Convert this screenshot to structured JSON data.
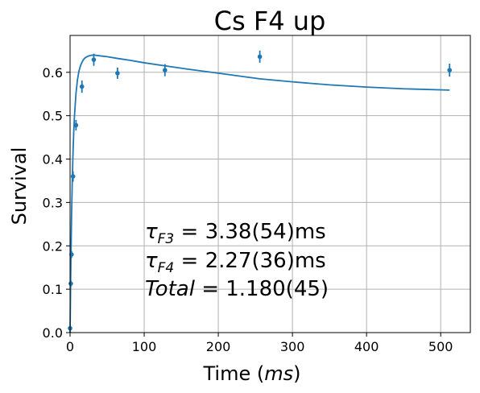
{
  "chart_data": {
    "type": "scatter",
    "title": "Cs F4 up",
    "xlabel": "Time (ms)",
    "xlabel_parts": {
      "text": "Time (",
      "math": "ms",
      "close": ")"
    },
    "ylabel": "Survival",
    "xlim": [
      0,
      540
    ],
    "ylim": [
      0,
      0.685
    ],
    "xticks": [
      0,
      100,
      200,
      300,
      400,
      500
    ],
    "yticks": [
      0.0,
      0.1,
      0.2,
      0.3,
      0.4,
      0.5,
      0.6
    ],
    "xtick_labels": [
      "0",
      "100",
      "200",
      "300",
      "400",
      "500"
    ],
    "ytick_labels": [
      "0.0",
      "0.1",
      "0.2",
      "0.3",
      "0.4",
      "0.5",
      "0.6"
    ],
    "grid": true,
    "color": "#1f77b4",
    "series": [
      {
        "kind": "errorbar",
        "x": [
          0,
          1,
          2,
          4,
          8,
          16,
          32,
          64,
          128,
          256,
          512
        ],
        "y": [
          0.01,
          0.113,
          0.18,
          0.36,
          0.478,
          0.567,
          0.629,
          0.598,
          0.605,
          0.636,
          0.605
        ],
        "yerr": [
          0.004,
          0.007,
          0.008,
          0.012,
          0.012,
          0.014,
          0.014,
          0.013,
          0.014,
          0.014,
          0.015
        ]
      },
      {
        "kind": "fit-curve",
        "x": [
          0,
          1,
          2,
          3,
          4,
          5,
          6,
          8,
          10,
          12,
          14,
          16,
          18,
          20,
          24,
          28,
          32,
          40,
          50,
          64,
          80,
          100,
          128,
          160,
          200,
          256,
          300,
          350,
          400,
          450,
          512
        ],
        "y": [
          0.0,
          0.152,
          0.266,
          0.352,
          0.416,
          0.464,
          0.501,
          0.552,
          0.583,
          0.603,
          0.615,
          0.623,
          0.629,
          0.633,
          0.637,
          0.639,
          0.64,
          0.638,
          0.636,
          0.632,
          0.628,
          0.622,
          0.615,
          0.607,
          0.598,
          0.585,
          0.578,
          0.571,
          0.566,
          0.562,
          0.559
        ]
      }
    ],
    "annotations": [
      {
        "lines": [
          "τ_F3 = 3.38(54)ms",
          "τ_F4 = 2.27(36)ms",
          "Total = 1.180(45)"
        ]
      }
    ]
  },
  "annotation_text": {
    "line1": {
      "tau": "τ",
      "sub": "F3",
      "rest": " = 3.38(54)ms"
    },
    "line2": {
      "tau": "τ",
      "sub": "F4",
      "rest": " = 2.27(36)ms"
    },
    "line3": {
      "italic": "Total",
      "rest": " = 1.180(45)"
    }
  }
}
